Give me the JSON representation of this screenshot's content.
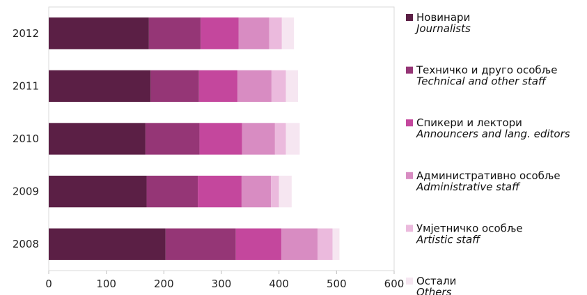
{
  "chart_data": {
    "type": "bar",
    "orientation": "horizontal",
    "stacked": true,
    "categories": [
      "2012",
      "2011",
      "2010",
      "2009",
      "2008"
    ],
    "series": [
      {
        "name": "Новинари",
        "name_en": "Journalists",
        "color": "#5b1f45",
        "values": [
          174,
          177,
          168,
          170,
          203
        ]
      },
      {
        "name": "Техничко и друго особље",
        "name_en": "Technical and other staff",
        "color": "#953676",
        "values": [
          90,
          84,
          94,
          89,
          122
        ]
      },
      {
        "name": "Спикери и лектори",
        "name_en": "Announcers and lang. editors",
        "color": "#c4479d",
        "values": [
          66,
          67,
          74,
          76,
          79
        ]
      },
      {
        "name": "Административно особље",
        "name_en": "Administrative staff",
        "color": "#d88cc2",
        "values": [
          53,
          59,
          57,
          51,
          63
        ]
      },
      {
        "name": "Умјетничко особље",
        "name_en": "Artistic staff",
        "color": "#ebbadd",
        "values": [
          22,
          25,
          19,
          14,
          26
        ]
      },
      {
        "name": "Остали",
        "name_en": "Others",
        "color": "#f6e6f1",
        "values": [
          21,
          21,
          24,
          22,
          12
        ]
      }
    ],
    "xlim": [
      0,
      600
    ],
    "x_ticks": [
      "0",
      "100",
      "200",
      "300",
      "400",
      "500",
      "600"
    ],
    "grid": false,
    "legend_position": "right"
  }
}
